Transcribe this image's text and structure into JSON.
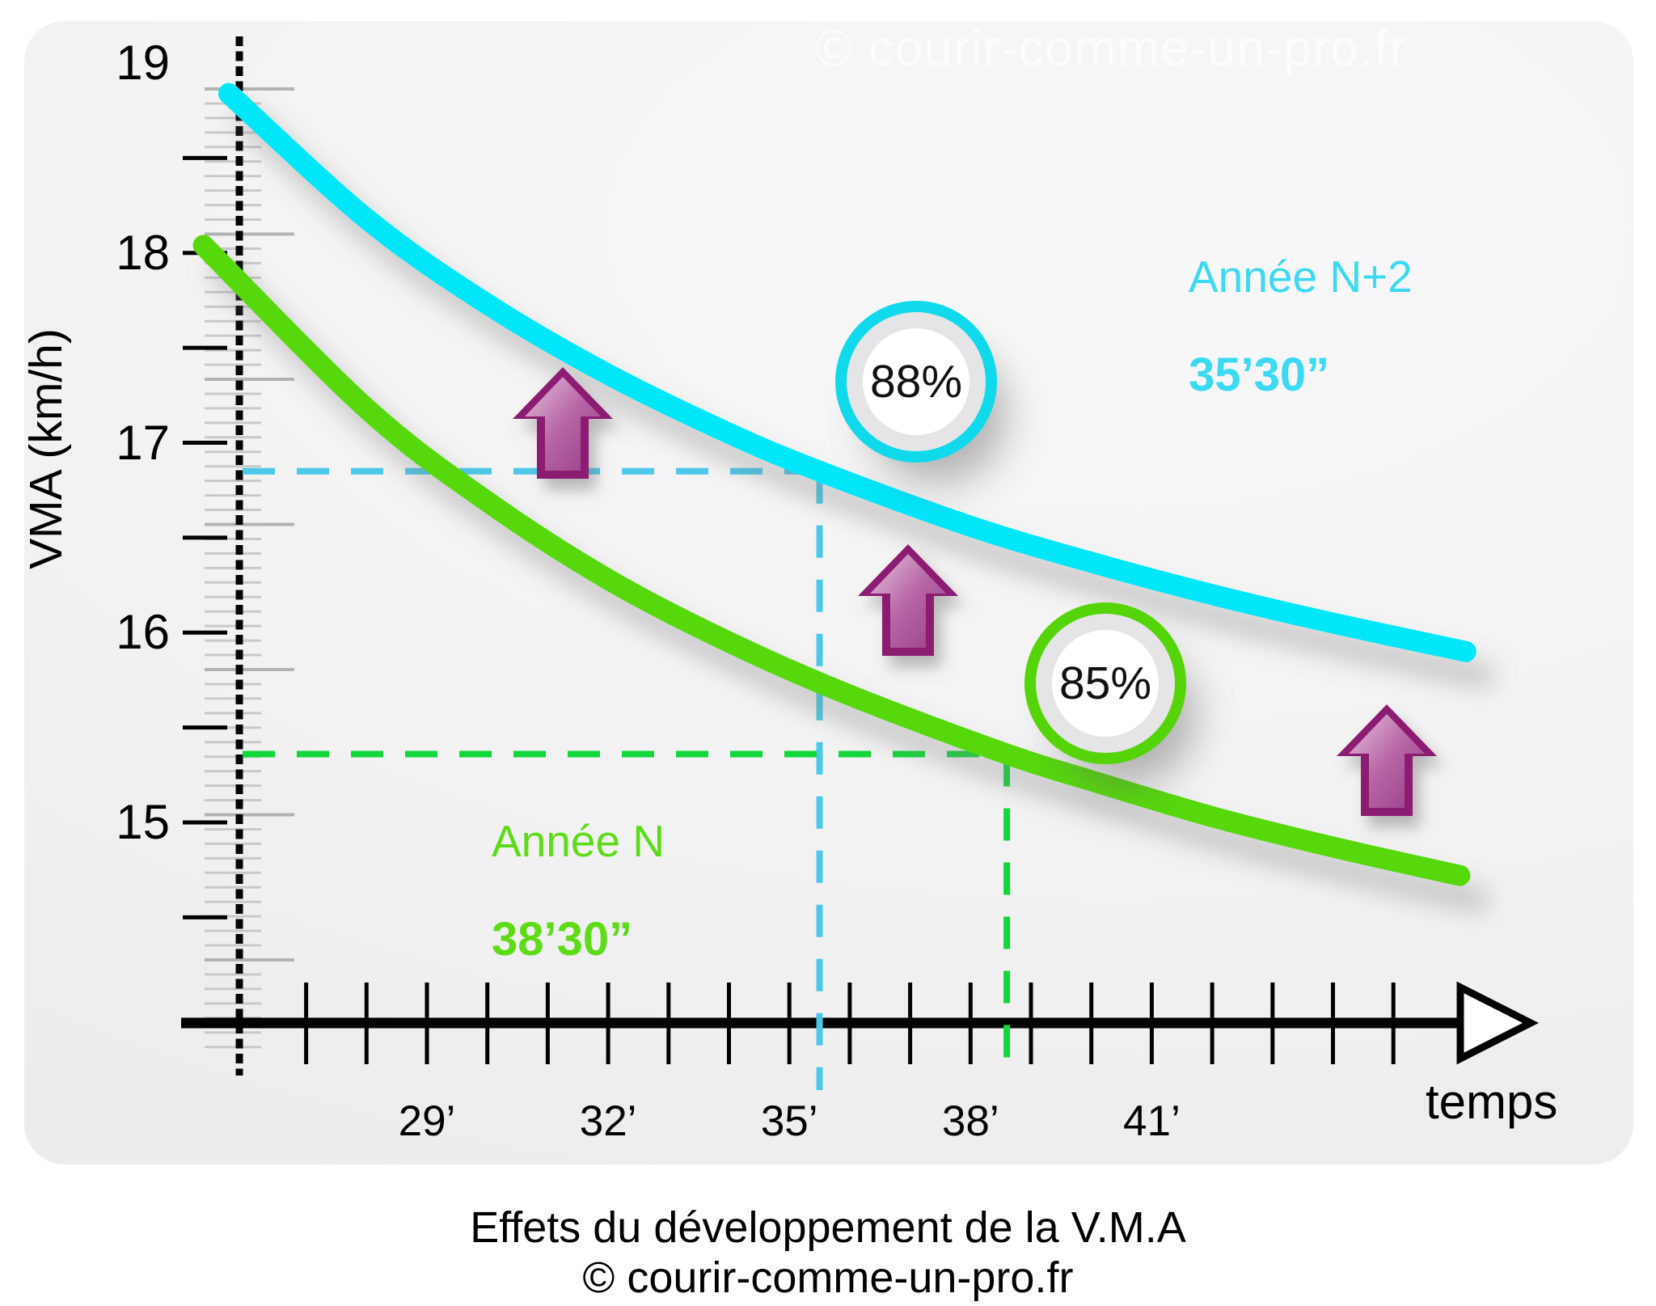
{
  "watermark": "© courir-comme-un-pro.fr",
  "caption": {
    "line1": "Effets du développement de la V.M.A",
    "line2": "© courir-comme-un-pro.fr"
  },
  "axes": {
    "y_title": "VMA (km/h)",
    "x_title": "temps",
    "y_tick_labels": [
      "19",
      "18",
      "17",
      "16",
      "15"
    ],
    "x_tick_labels": [
      "29’",
      "32’",
      "35’",
      "38’",
      "41’"
    ]
  },
  "series_labels": [
    {
      "name": "Année N+2",
      "time": "35’30”",
      "badge": "88%"
    },
    {
      "name": "Année N",
      "time": "38’30”",
      "badge": "85%"
    }
  ],
  "chart_data": {
    "type": "line",
    "title": "Effets du développement de la V.M.A",
    "xlabel": "temps",
    "ylabel": "VMA (km/h)",
    "x_unit": "minutes",
    "x_ticks": [
      29,
      32,
      35,
      38,
      41
    ],
    "y_ticks": [
      19,
      18,
      17,
      16,
      15
    ],
    "x_range_minutes": [
      25.3,
      46.2
    ],
    "y_range": [
      14.3,
      19.1
    ],
    "grid": false,
    "legend_position": "inline-labels",
    "series": [
      {
        "name": "Année N+2",
        "record_time": "35’30”",
        "badge": "88%",
        "color": "#00e7fa",
        "points": [
          [
            25.72,
            18.84
          ],
          [
            28,
            18.18
          ],
          [
            30,
            17.73
          ],
          [
            32,
            17.36
          ],
          [
            34,
            17.05
          ],
          [
            35.5,
            16.85
          ],
          [
            38,
            16.56
          ],
          [
            40,
            16.37
          ],
          [
            42,
            16.2
          ],
          [
            44,
            16.05
          ],
          [
            46.2,
            15.9
          ]
        ]
      },
      {
        "name": "Année N",
        "record_time": "38’30”",
        "badge": "85%",
        "color": "#57d808",
        "points": [
          [
            25.3,
            18.04
          ],
          [
            28,
            17.18
          ],
          [
            30,
            16.69
          ],
          [
            32,
            16.28
          ],
          [
            34,
            15.95
          ],
          [
            36,
            15.67
          ],
          [
            38.6,
            15.36
          ],
          [
            40,
            15.22
          ],
          [
            42,
            15.03
          ],
          [
            44,
            14.87
          ],
          [
            46.1,
            14.72
          ]
        ]
      }
    ],
    "reference_lines": [
      {
        "series": "Année N+2",
        "time_min": 35.5,
        "vma": 16.85,
        "color": "#4cc8ea",
        "style": "dashed"
      },
      {
        "series": "Année N",
        "time_min": 38.6,
        "vma": 15.36,
        "color": "#12d73a",
        "style": "dashed"
      }
    ],
    "annotations": [
      {
        "type": "up-arrow",
        "color": "#a2458f",
        "count": 3,
        "meaning": "gain de VMA entre les saisons"
      }
    ]
  }
}
